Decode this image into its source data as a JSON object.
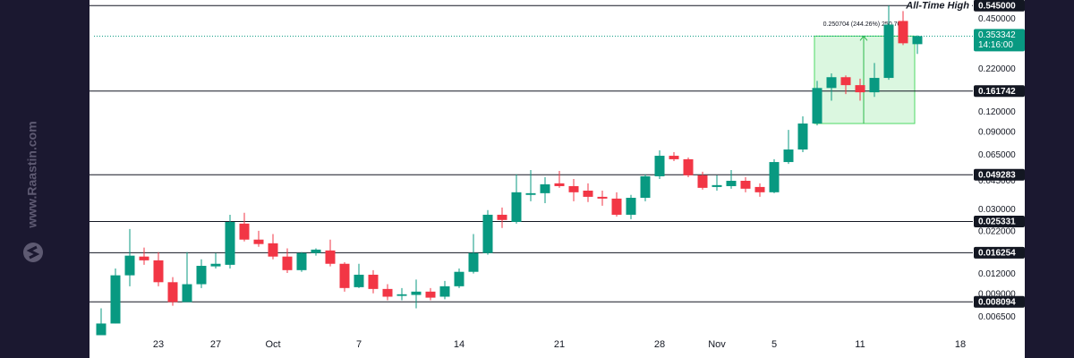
{
  "chart_data": {
    "type": "candlestick",
    "watermark": "www.Raastin.com",
    "log_scale": true,
    "grid": false,
    "up_color": "#089981",
    "down_color": "#f23645",
    "level_color": "#131722",
    "categories": [
      null,
      null,
      null,
      null,
      "23",
      null,
      null,
      null,
      "27",
      null,
      null,
      null,
      "Oct",
      null,
      null,
      null,
      null,
      null,
      "7",
      null,
      null,
      null,
      null,
      null,
      null,
      "14",
      null,
      null,
      null,
      null,
      null,
      null,
      "21",
      null,
      null,
      null,
      null,
      null,
      null,
      "28",
      null,
      null,
      null,
      "Nov",
      null,
      null,
      null,
      "5",
      null,
      null,
      null,
      null,
      null,
      "11",
      null,
      null,
      null,
      null,
      null,
      null,
      "18"
    ],
    "open": [
      0.00504,
      0.00595,
      0.0118,
      0.0154,
      0.0146,
      0.0107,
      0.00807,
      0.0104,
      0.0134,
      0.0137,
      0.0246,
      0.0196,
      0.0186,
      0.0154,
      0.0127,
      0.0162,
      0.0168,
      0.0139,
      0.00997,
      0.0119,
      0.00972,
      0.00881,
      0.00893,
      0.00936,
      0.00871,
      0.0101,
      0.0124,
      0.0162,
      0.0279,
      0.0252,
      0.037,
      0.0379,
      0.0436,
      0.0419,
      0.0393,
      0.036,
      0.0351,
      0.0279,
      0.0355,
      0.0482,
      0.0645,
      0.0614,
      0.0489,
      0.0414,
      0.0419,
      0.0452,
      0.0414,
      0.0384,
      0.059,
      0.0705,
      0.102,
      0.169,
      0.197,
      0.176,
      0.159,
      0.195,
      0.438,
      0.315,
      null,
      null,
      null
    ],
    "high": [
      0.00738,
      0.013,
      0.0228,
      0.0175,
      0.0164,
      0.0115,
      0.0164,
      0.0148,
      0.0162,
      0.0279,
      0.0287,
      0.0222,
      0.0212,
      0.0173,
      0.0164,
      0.0173,
      0.0196,
      0.0142,
      0.0139,
      0.0127,
      0.0104,
      0.00985,
      0.0111,
      0.00985,
      0.0109,
      0.013,
      0.0212,
      0.0298,
      0.0309,
      0.0495,
      0.0527,
      0.0476,
      0.052,
      0.0464,
      0.0436,
      0.0393,
      0.0384,
      0.037,
      0.0495,
      0.0697,
      0.0679,
      0.0629,
      0.0514,
      0.0489,
      0.0527,
      0.0476,
      0.0436,
      0.0614,
      0.0932,
      0.113,
      0.187,
      0.208,
      0.202,
      0.193,
      0.241,
      0.545,
      0.504,
      0.357,
      null,
      null,
      null
    ],
    "low": [
      0.00504,
      0.00595,
      0.0101,
      0.0137,
      0.0101,
      0.00766,
      0.00807,
      0.00985,
      0.013,
      0.013,
      0.0191,
      0.0177,
      0.0148,
      0.0122,
      0.0124,
      0.0156,
      0.0134,
      0.00936,
      0.00985,
      0.00913,
      0.00828,
      0.00828,
      0.00738,
      0.00828,
      0.00839,
      0.00985,
      0.0121,
      0.0158,
      0.0231,
      0.0246,
      0.0338,
      0.0329,
      0.0409,
      0.0338,
      0.0334,
      0.0317,
      0.0272,
      0.0262,
      0.0338,
      0.0464,
      0.0598,
      0.0476,
      0.0399,
      0.0393,
      0.0404,
      0.0384,
      0.036,
      0.0379,
      0.0575,
      0.0679,
      0.0993,
      0.141,
      0.155,
      0.141,
      0.149,
      0.19,
      0.311,
      0.274,
      null,
      null,
      null
    ],
    "close": [
      0.00595,
      0.0118,
      0.0156,
      0.0146,
      0.0107,
      0.00807,
      0.0104,
      0.0135,
      0.0139,
      0.0252,
      0.0196,
      0.0184,
      0.0154,
      0.0127,
      0.0162,
      0.017,
      0.0139,
      0.00985,
      0.0119,
      0.00972,
      0.00871,
      0.00901,
      0.00936,
      0.00859,
      0.0101,
      0.0124,
      0.0162,
      0.0279,
      0.0259,
      0.0384,
      0.0379,
      0.043,
      0.0419,
      0.0384,
      0.036,
      0.0351,
      0.0279,
      0.0355,
      0.0482,
      0.0645,
      0.0614,
      0.0489,
      0.0409,
      0.0425,
      0.0452,
      0.0404,
      0.0384,
      0.059,
      0.0705,
      0.102,
      0.169,
      0.197,
      0.176,
      0.159,
      0.195,
      0.416,
      0.319,
      0.353342,
      null,
      null,
      null
    ],
    "ylim": [
      0.0047,
      0.59
    ],
    "yticks": [
      {
        "value": 0.45,
        "label": "0.450000"
      },
      {
        "value": 0.22,
        "label": "0.220000"
      },
      {
        "value": 0.12,
        "label": "0.120000"
      },
      {
        "value": 0.09,
        "label": "0.090000"
      },
      {
        "value": 0.065,
        "label": "0.065000"
      },
      {
        "value": 0.045,
        "label": "0.045000"
      },
      {
        "value": 0.03,
        "label": "0.030000"
      },
      {
        "value": 0.022,
        "label": "0.022000"
      },
      {
        "value": 0.012,
        "label": "0.012000"
      },
      {
        "value": 0.009,
        "label": "0.009000"
      },
      {
        "value": 0.0065,
        "label": "0.006500"
      }
    ],
    "levels": {
      "values": [
        0.545,
        0.161742,
        0.049283,
        0.025331,
        0.016254,
        0.008094
      ],
      "value_labels": [
        "0.545000",
        "0.161742",
        "0.049283",
        "0.025331",
        "0.016254",
        "0.008094"
      ]
    },
    "ath_label": "All-Time High",
    "current_price": {
      "value": 0.353342,
      "countdown": "14:16:00"
    },
    "measure": {
      "label": "0.250704 (244.26%) 250,704",
      "from": 0.102,
      "to": 0.353342
    }
  }
}
